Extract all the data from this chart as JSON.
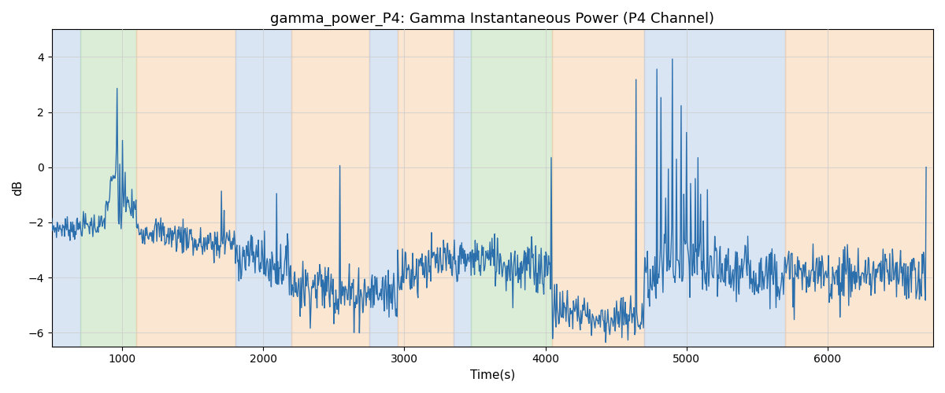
{
  "title": "gamma_power_P4: Gamma Instantaneous Power (P4 Channel)",
  "xlabel": "Time(s)",
  "ylabel": "dB",
  "ylim": [
    -6.5,
    5.0
  ],
  "xlim": [
    500,
    6750
  ],
  "bg_regions": [
    {
      "xmin": 500,
      "xmax": 700,
      "color": "#aec6e8",
      "alpha": 0.45
    },
    {
      "xmin": 700,
      "xmax": 1100,
      "color": "#b2d8a8",
      "alpha": 0.45
    },
    {
      "xmin": 1100,
      "xmax": 1800,
      "color": "#f5c89a",
      "alpha": 0.45
    },
    {
      "xmin": 1800,
      "xmax": 2200,
      "color": "#aec6e8",
      "alpha": 0.45
    },
    {
      "xmin": 2200,
      "xmax": 2750,
      "color": "#f5c89a",
      "alpha": 0.45
    },
    {
      "xmin": 2750,
      "xmax": 2950,
      "color": "#aec6e8",
      "alpha": 0.45
    },
    {
      "xmin": 2950,
      "xmax": 3350,
      "color": "#f5c89a",
      "alpha": 0.45
    },
    {
      "xmin": 3350,
      "xmax": 3470,
      "color": "#aec6e8",
      "alpha": 0.45
    },
    {
      "xmin": 3470,
      "xmax": 4050,
      "color": "#b2d8a8",
      "alpha": 0.45
    },
    {
      "xmin": 4050,
      "xmax": 4700,
      "color": "#f5c89a",
      "alpha": 0.45
    },
    {
      "xmin": 4700,
      "xmax": 5700,
      "color": "#aec6e8",
      "alpha": 0.45
    },
    {
      "xmin": 5700,
      "xmax": 6750,
      "color": "#f5c89a",
      "alpha": 0.45
    }
  ],
  "line_color": "#2c6fad",
  "line_width": 1.0,
  "grid_color": "#cccccc",
  "grid_alpha": 0.7,
  "title_fontsize": 13,
  "axis_label_fontsize": 11,
  "tick_fontsize": 10,
  "n_points": 1300,
  "x_start": 500,
  "x_end": 6700
}
